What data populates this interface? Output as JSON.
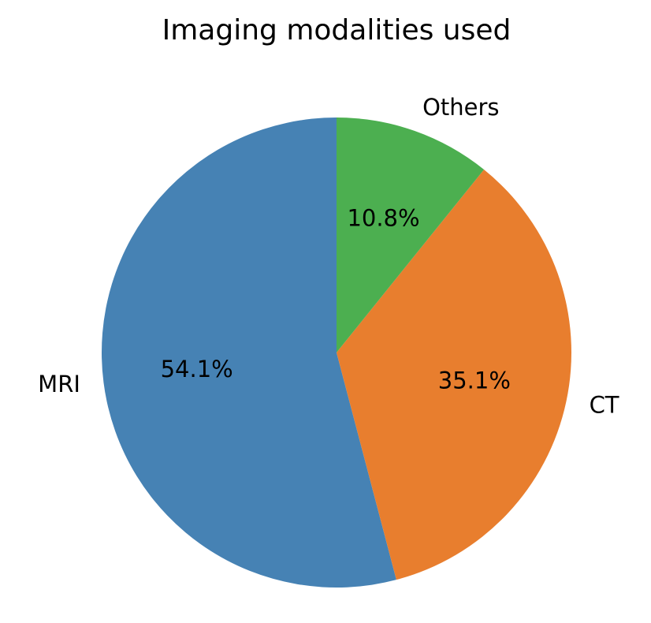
{
  "chart_data": {
    "type": "pie",
    "title": "Imaging modalities used",
    "categories": [
      "MRI",
      "CT",
      "Others"
    ],
    "values": [
      54.1,
      35.1,
      10.8
    ],
    "value_labels": [
      "54.1%",
      "35.1%",
      "10.8%"
    ],
    "colors": [
      "#4682b4",
      "#e87e2e",
      "#4caf50"
    ]
  }
}
